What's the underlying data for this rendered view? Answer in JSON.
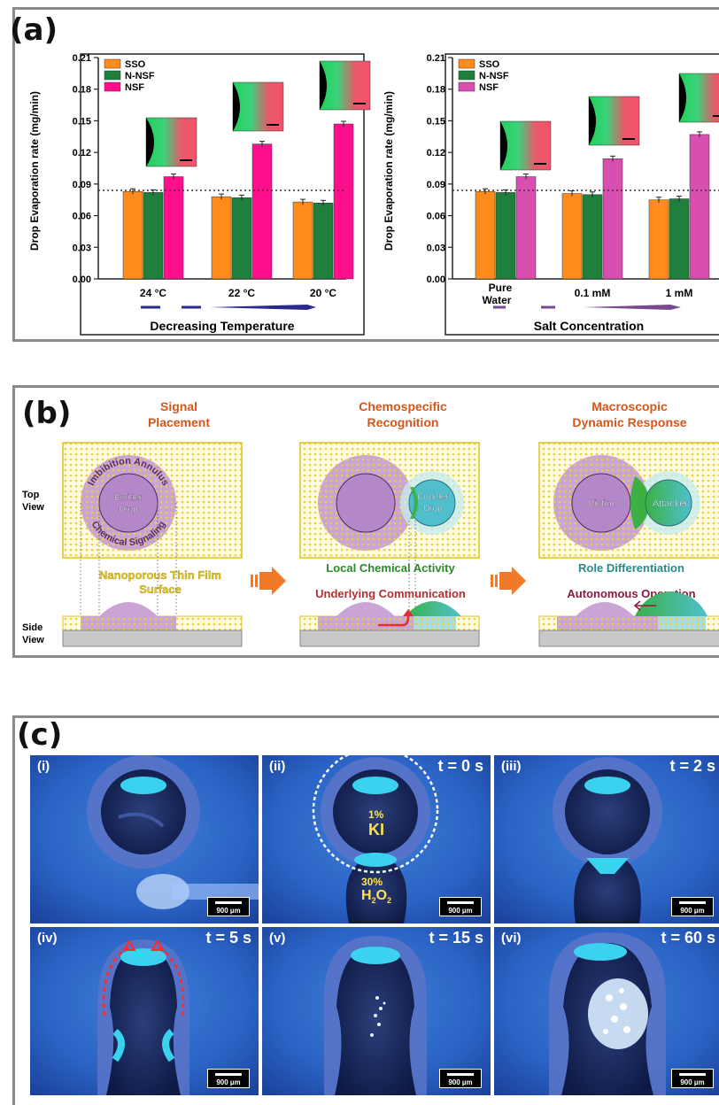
{
  "panel_a": {
    "label": "(a)",
    "left_chart": {
      "ylabel": "Drop Evaporation rate (mg/min)",
      "yticks": [
        "0.00",
        "0.03",
        "0.06",
        "0.09",
        "0.12",
        "0.15",
        "0.18",
        "0.21"
      ],
      "categories": [
        "24 °C",
        "22 °C",
        "20 °C"
      ],
      "xlabel": "Decreasing Temperature"
    },
    "right_chart": {
      "ylabel": "Drop Evaporation rate (mg/min)",
      "yticks": [
        "0.00",
        "0.03",
        "0.06",
        "0.09",
        "0.12",
        "0.15",
        "0.18",
        "0.21"
      ],
      "category_line1": [
        "Pure",
        "",
        ""
      ],
      "categories": [
        "Water",
        "0.1 mM",
        "1 mM"
      ],
      "xlabel": "Salt Concentration"
    },
    "legend": [
      "SSO",
      "N-NSF",
      "NSF"
    ]
  },
  "chart_data": [
    {
      "type": "bar",
      "categories": [
        "24 °C",
        "22 °C",
        "20 °C"
      ],
      "series": [
        {
          "name": "SSO",
          "values": [
            0.083,
            0.078,
            0.073
          ]
        },
        {
          "name": "N-NSF",
          "values": [
            0.082,
            0.077,
            0.072
          ]
        },
        {
          "name": "NSF",
          "values": [
            0.097,
            0.128,
            0.147
          ]
        }
      ],
      "ylabel": "Drop Evaporation rate (mg/min)",
      "xlabel": "Decreasing Temperature",
      "ylim": [
        0,
        0.21
      ],
      "reference_line": 0.084,
      "legend": "top-left",
      "colors": {
        "SSO": "#ff8c1a",
        "N-NSF": "#1f7f3c",
        "NSF": "#ff0f8c"
      }
    },
    {
      "type": "bar",
      "categories": [
        "Pure Water",
        "0.1 mM",
        "1 mM"
      ],
      "series": [
        {
          "name": "SSO",
          "values": [
            0.083,
            0.081,
            0.075
          ]
        },
        {
          "name": "N-NSF",
          "values": [
            0.082,
            0.08,
            0.076
          ]
        },
        {
          "name": "NSF",
          "values": [
            0.097,
            0.114,
            0.137
          ]
        }
      ],
      "ylabel": "Drop Evaporation rate (mg/min)",
      "xlabel": "Salt Concentration",
      "ylim": [
        0,
        0.21
      ],
      "reference_line": 0.084,
      "legend": "top-left",
      "colors": {
        "SSO": "#ff8c1a",
        "N-NSF": "#1f7f3c",
        "NSF": "#d94fb0"
      }
    }
  ],
  "panel_b": {
    "label": "(b)",
    "titles": [
      {
        "line1": "Signal",
        "line2": "Placement"
      },
      {
        "line1": "Chemospecific",
        "line2": "Recognition"
      },
      {
        "line1": "Macroscopic",
        "line2": "Dynamic Response"
      }
    ],
    "top_view": [
      "Top",
      "View"
    ],
    "side_view": [
      "Side",
      "View"
    ],
    "annulus_label": "Imbibition Annulus",
    "signaling_label": "Chemical Signaling",
    "emitter": [
      "Emitter",
      "Drop"
    ],
    "counter": [
      "Counter",
      "Drop"
    ],
    "victim": "Victim",
    "attacker": "Attacker",
    "surface": [
      "Nanoporous Thin Film",
      "Surface"
    ],
    "local_activity": "Local Chemical Activity",
    "underlying": "Underlying Communication",
    "role": "Role Differentiation",
    "autonomous": "Autonomous Operation"
  },
  "panel_c": {
    "label": "(c)",
    "tiles": [
      {
        "id": "(i)",
        "time": ""
      },
      {
        "id": "(ii)",
        "time": "t = 0 s"
      },
      {
        "id": "(iii)",
        "time": "t = 2 s"
      },
      {
        "id": "(iv)",
        "time": "t = 5 s"
      },
      {
        "id": "(v)",
        "time": "t = 15 s"
      },
      {
        "id": "(vi)",
        "time": "t = 60 s"
      }
    ],
    "scale": "900 µm",
    "ki_pct": "1%",
    "ki": "KI",
    "h2o2_pct": "30%",
    "h2o2": "H",
    "h2o2_sub": "2",
    "h2o2_mid": "O",
    "h2o2_sub2": "2"
  },
  "colors": {
    "orange": "#ff8c1a",
    "green": "#1f7f3c",
    "pink": "#ff0f8c",
    "magenta": "#d94fb0",
    "navy": "#2a2a8c",
    "titleOrange": "#d2571c"
  }
}
